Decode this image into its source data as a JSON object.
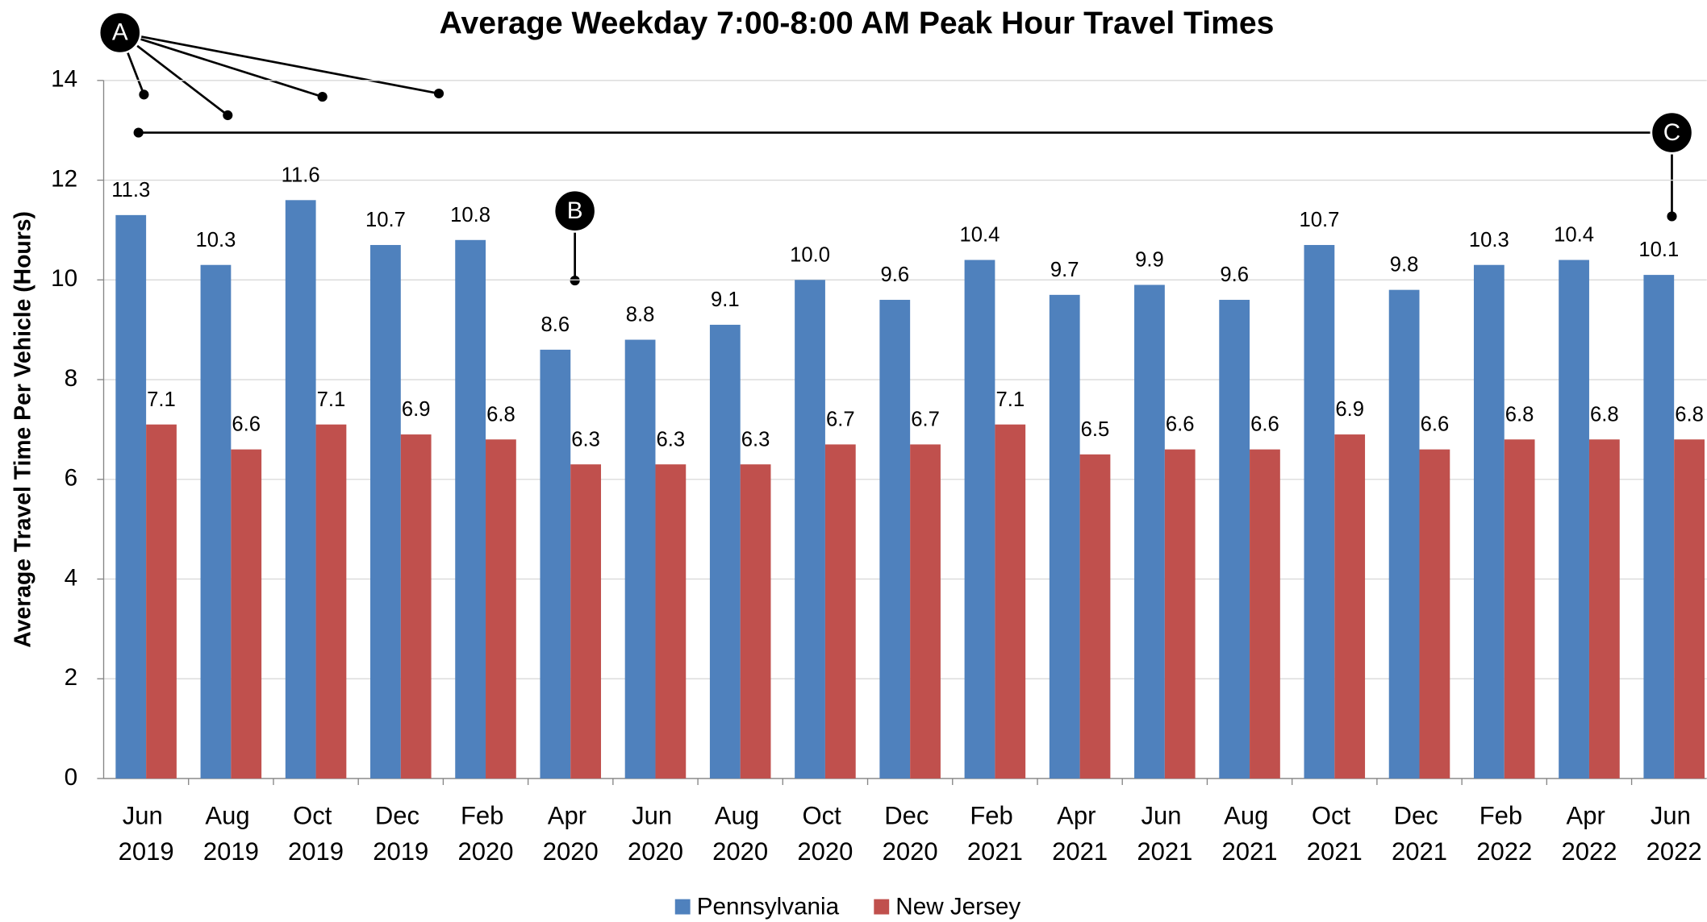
{
  "chart_data": {
    "type": "bar",
    "title": "Average Weekday 7:00-8:00 AM Peak Hour Travel Times",
    "y_label": "Average Travel Time Per Vehicle (Hours)",
    "categories": [
      "Jun 2019",
      "Aug 2019",
      "Oct 2019",
      "Dec 2019",
      "Feb 2020",
      "Apr 2020",
      "Jun 2020",
      "Aug 2020",
      "Oct 2020",
      "Dec 2020",
      "Feb 2021",
      "Apr 2021",
      "Jun 2021",
      "Aug 2021",
      "Oct 2021",
      "Dec 2021",
      "Feb 2022",
      "Apr 2022",
      "Jun 2022"
    ],
    "series": [
      {
        "name": "Pennsylvania",
        "color": "#4f81bd",
        "values": [
          11.3,
          10.3,
          11.6,
          10.7,
          10.8,
          8.6,
          8.8,
          9.1,
          10.0,
          9.6,
          10.4,
          9.7,
          9.9,
          9.6,
          10.7,
          9.8,
          10.3,
          10.4,
          10.1
        ],
        "value_labels": [
          "11.3",
          "10.3",
          "11.6",
          "10.7",
          "10.8",
          "8.6",
          "8.8",
          "9.1",
          "10.0",
          "9.6",
          "10.4",
          "9.7",
          "9.9",
          "9.6",
          "10.7",
          "9.8",
          "10.3",
          "10.4",
          "10.1"
        ]
      },
      {
        "name": "New Jersey",
        "color": "#c0504d",
        "values": [
          7.1,
          6.6,
          7.1,
          6.9,
          6.8,
          6.3,
          6.3,
          6.3,
          6.7,
          6.7,
          7.1,
          6.5,
          6.6,
          6.6,
          6.9,
          6.6,
          6.8,
          6.8,
          6.8
        ],
        "value_labels": [
          "7.1",
          "6.6",
          "7.1",
          "6.9",
          "6.8",
          "6.3",
          "6.3",
          "6.3",
          "6.7",
          "6.7",
          "7.1",
          "6.5",
          "6.6",
          "6.6",
          "6.9",
          "6.6",
          "6.8",
          "6.8",
          "6.8"
        ]
      }
    ],
    "ylim": [
      0,
      14
    ],
    "yticks": [
      0,
      2,
      4,
      6,
      8,
      10,
      12,
      14
    ],
    "grid": true,
    "legend": "bottom",
    "annotations": [
      "A",
      "B",
      "C"
    ]
  }
}
